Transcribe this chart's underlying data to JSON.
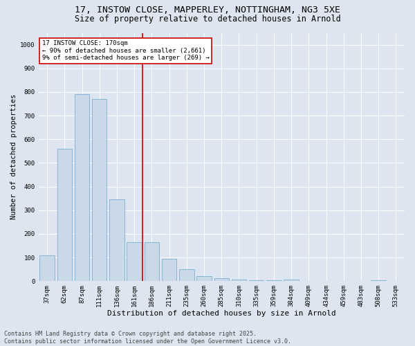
{
  "title1": "17, INSTOW CLOSE, MAPPERLEY, NOTTINGHAM, NG3 5XE",
  "title2": "Size of property relative to detached houses in Arnold",
  "xlabel": "Distribution of detached houses by size in Arnold",
  "ylabel": "Number of detached properties",
  "categories": [
    "37sqm",
    "62sqm",
    "87sqm",
    "111sqm",
    "136sqm",
    "161sqm",
    "186sqm",
    "211sqm",
    "235sqm",
    "260sqm",
    "285sqm",
    "310sqm",
    "335sqm",
    "359sqm",
    "384sqm",
    "409sqm",
    "434sqm",
    "459sqm",
    "483sqm",
    "508sqm",
    "533sqm"
  ],
  "values": [
    110,
    560,
    790,
    770,
    345,
    165,
    165,
    95,
    50,
    20,
    12,
    7,
    3,
    3,
    7,
    2,
    1,
    0,
    0,
    5,
    2
  ],
  "bar_color": "#c9d9e8",
  "bar_edge_color": "#7bafd4",
  "vline_x_index": 5,
  "vline_color": "#cc0000",
  "annotation_box_color": "#cc0000",
  "annotation_line1": "17 INSTOW CLOSE: 170sqm",
  "annotation_line2": "← 90% of detached houses are smaller (2,661)",
  "annotation_line3": "9% of semi-detached houses are larger (269) →",
  "ylim": [
    0,
    1050
  ],
  "yticks": [
    0,
    100,
    200,
    300,
    400,
    500,
    600,
    700,
    800,
    900,
    1000
  ],
  "background_color": "#dde6f0",
  "plot_bg_color": "#dde6f0",
  "footer_line1": "Contains HM Land Registry data © Crown copyright and database right 2025.",
  "footer_line2": "Contains public sector information licensed under the Open Government Licence v3.0.",
  "title1_fontsize": 9.5,
  "title2_fontsize": 8.5,
  "xlabel_fontsize": 8,
  "ylabel_fontsize": 7.5,
  "tick_fontsize": 6.5,
  "annot_fontsize": 6.5,
  "footer_fontsize": 6
}
